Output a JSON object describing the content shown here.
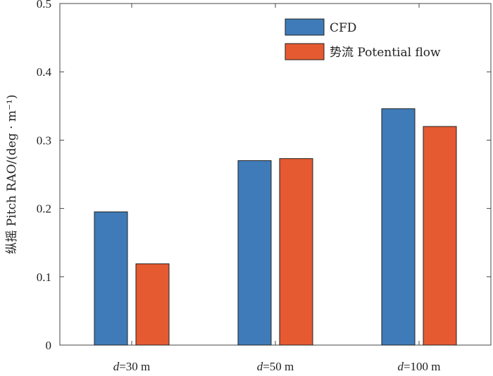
{
  "chart_data": {
    "type": "bar",
    "categories": [
      "d=30 m",
      "d=50 m",
      "d=100 m"
    ],
    "category_labels": [
      {
        "italic": "d",
        "rest": "=30 m"
      },
      {
        "italic": "d",
        "rest": "=50 m"
      },
      {
        "italic": "d",
        "rest": "=100 m"
      }
    ],
    "series": [
      {
        "name": "CFD",
        "values": [
          0.195,
          0.27,
          0.346
        ],
        "color": "#3f7bb8"
      },
      {
        "name": "势流  Potential flow",
        "values": [
          0.119,
          0.273,
          0.32
        ],
        "color": "#e55a31"
      }
    ],
    "ylabel": "纵摇 Pitch RAO/(deg · m⁻¹)",
    "ylim": [
      0,
      0.5
    ],
    "yticks": [
      0,
      0.1,
      0.2,
      0.3,
      0.4,
      0.5
    ],
    "ytick_labels": [
      "0",
      "0.1",
      "0.2",
      "0.3",
      "0.4",
      "0.5"
    ],
    "legend_position": "top-right",
    "grid": false
  }
}
